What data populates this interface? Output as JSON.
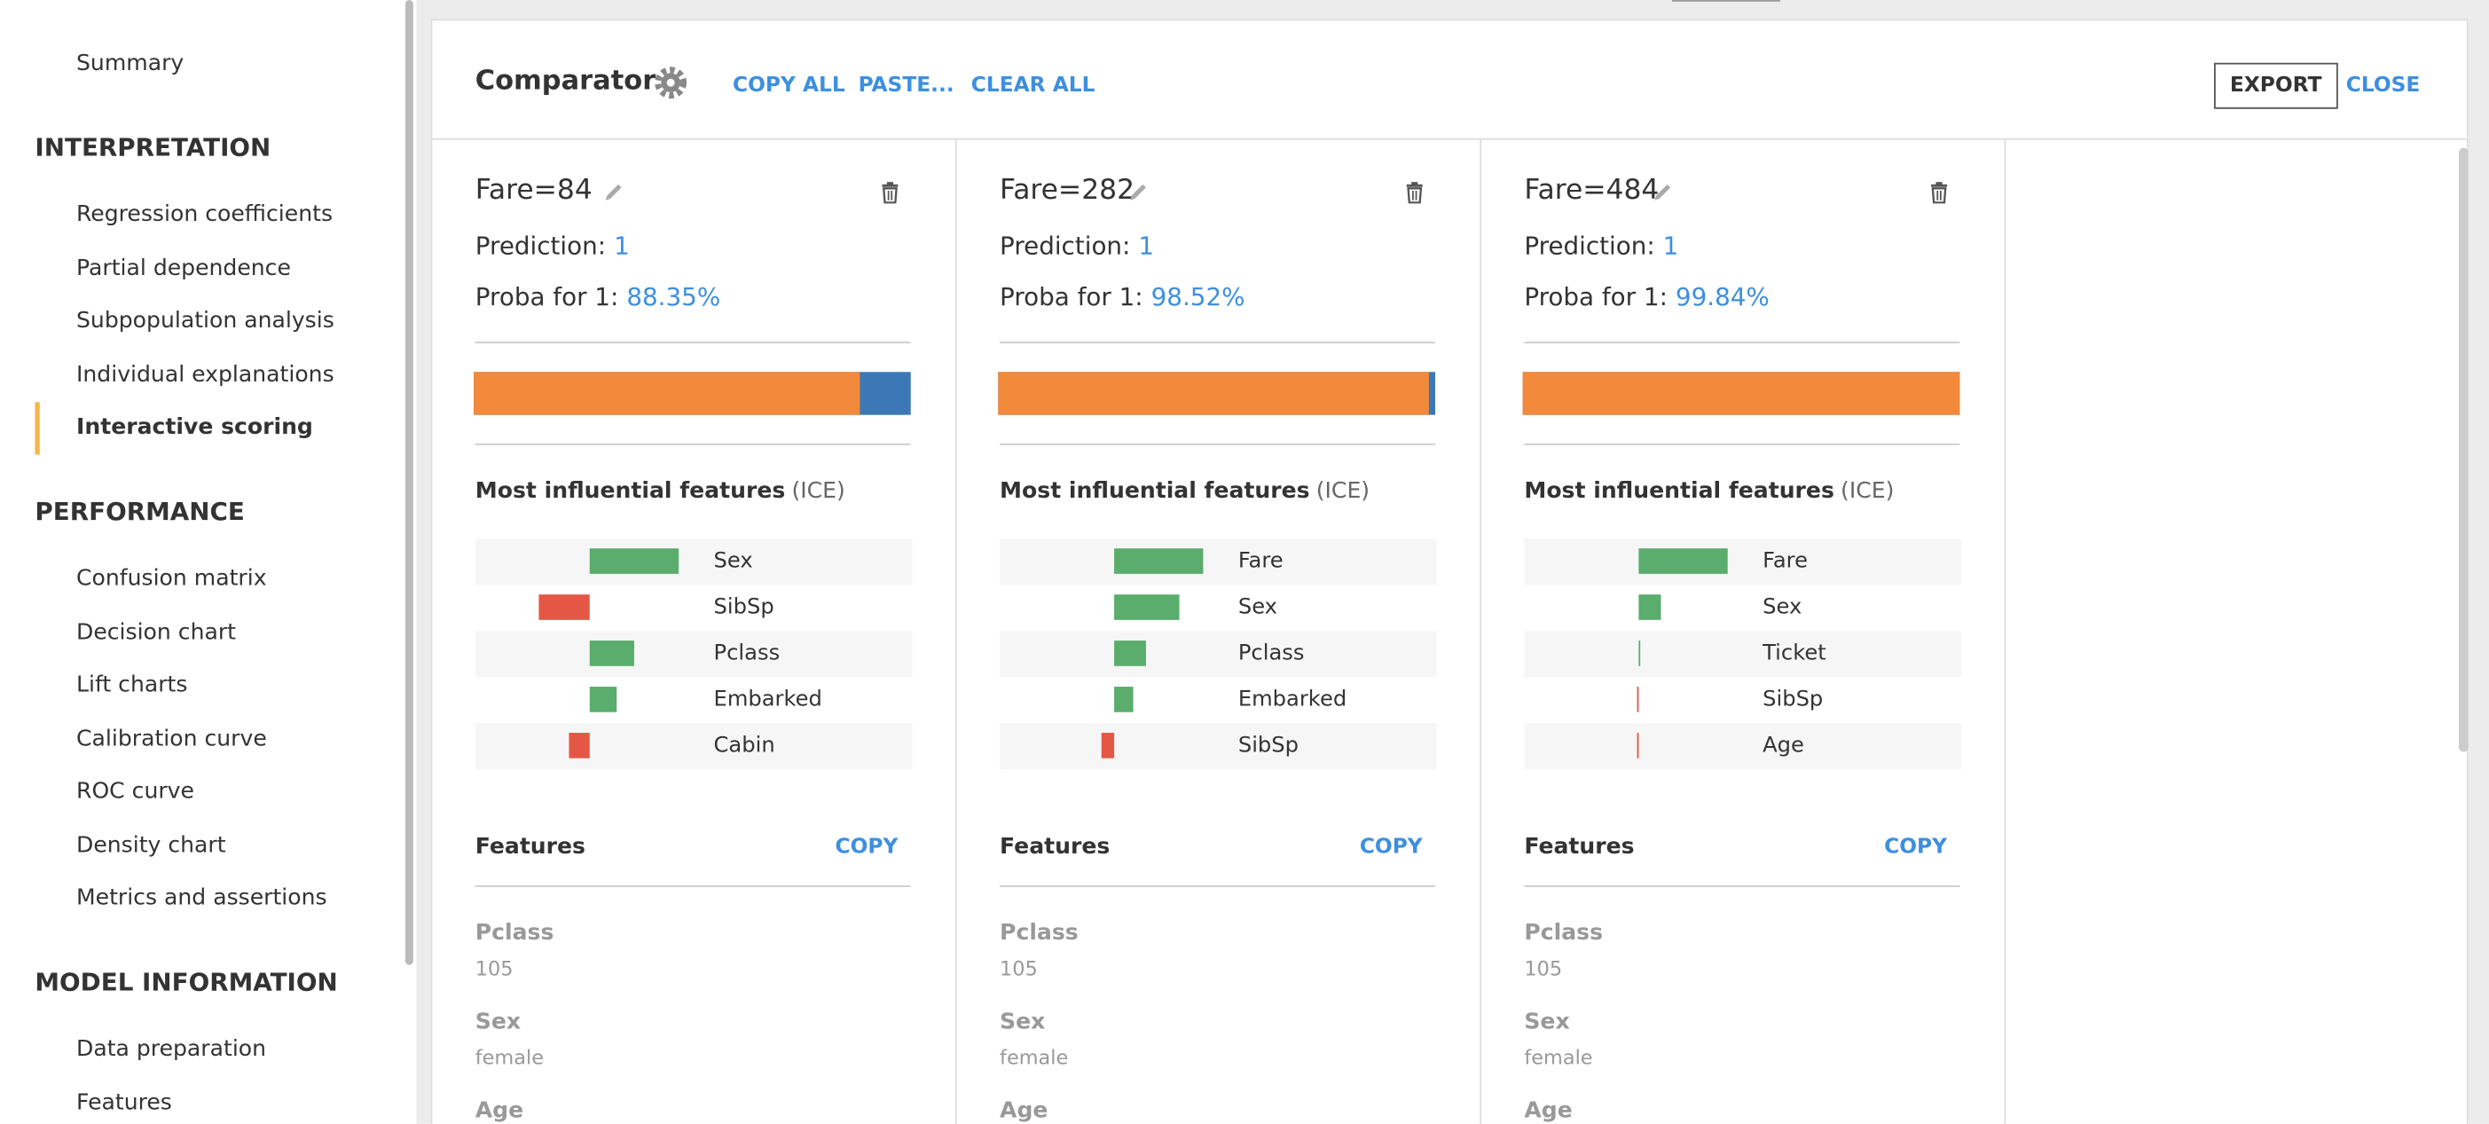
{
  "sidebar": {
    "top_item": "Summary",
    "sections": [
      {
        "title": "INTERPRETATION",
        "items": [
          {
            "label": "Regression coefficients"
          },
          {
            "label": "Partial dependence"
          },
          {
            "label": "Subpopulation analysis"
          },
          {
            "label": "Individual explanations"
          },
          {
            "label": "Interactive scoring",
            "active": true
          }
        ]
      },
      {
        "title": "PERFORMANCE",
        "items": [
          {
            "label": "Confusion matrix"
          },
          {
            "label": "Decision chart"
          },
          {
            "label": "Lift charts"
          },
          {
            "label": "Calibration curve"
          },
          {
            "label": "ROC curve"
          },
          {
            "label": "Density chart"
          },
          {
            "label": "Metrics and assertions"
          }
        ]
      },
      {
        "title": "MODEL INFORMATION",
        "items": [
          {
            "label": "Data preparation"
          },
          {
            "label": "Features"
          }
        ]
      }
    ]
  },
  "comparator": {
    "title": "Comparator",
    "actions": [
      "COPY ALL",
      "PASTE...",
      "CLEAR ALL"
    ],
    "export": "EXPORT",
    "close": "CLOSE"
  },
  "cards": [
    {
      "title": "Fare=84",
      "prediction_label": "Prediction:",
      "prediction": 1,
      "proba_label": "Proba for 1:",
      "proba": {
        "value": 88.35,
        "label": "88.35%"
      },
      "influence_title": "Most influential features",
      "influence_note": "(ICE)",
      "influences": [
        {
          "name": "Sex",
          "value": 0.56
        },
        {
          "name": "SibSp",
          "value": -0.32
        },
        {
          "name": "Pclass",
          "value": 0.28
        },
        {
          "name": "Embarked",
          "value": 0.17
        },
        {
          "name": "Cabin",
          "value": -0.13
        }
      ],
      "features_title": "Features",
      "copy": "COPY",
      "features": [
        {
          "name": "Pclass",
          "value": "105"
        },
        {
          "name": "Sex",
          "value": "female"
        },
        {
          "name": "Age"
        }
      ]
    },
    {
      "title": "Fare=282",
      "prediction_label": "Prediction:",
      "prediction": 1,
      "proba_label": "Proba for 1:",
      "proba": {
        "value": 98.52,
        "label": "98.52%"
      },
      "influence_title": "Most influential features",
      "influence_note": "(ICE)",
      "influences": [
        {
          "name": "Fare",
          "value": 0.56
        },
        {
          "name": "Sex",
          "value": 0.41
        },
        {
          "name": "Pclass",
          "value": 0.2
        },
        {
          "name": "Embarked",
          "value": 0.12
        },
        {
          "name": "SibSp",
          "value": -0.08
        }
      ],
      "features_title": "Features",
      "copy": "COPY",
      "features": [
        {
          "name": "Pclass",
          "value": "105"
        },
        {
          "name": "Sex",
          "value": "female"
        },
        {
          "name": "Age"
        }
      ]
    },
    {
      "title": "Fare=484",
      "prediction_label": "Prediction:",
      "prediction": 1,
      "proba_label": "Proba for 1:",
      "proba": {
        "value": 99.84,
        "label": "99.84%"
      },
      "influence_title": "Most influential features",
      "influence_note": "(ICE)",
      "influences": [
        {
          "name": "Fare",
          "value": 0.56
        },
        {
          "name": "Sex",
          "value": 0.14
        },
        {
          "name": "Ticket",
          "value": 0.01
        },
        {
          "name": "SibSp",
          "value": -0.01
        },
        {
          "name": "Age",
          "value": -0.01
        }
      ],
      "features_title": "Features",
      "copy": "COPY",
      "features": [
        {
          "name": "Pclass",
          "value": "105"
        },
        {
          "name": "Sex",
          "value": "female"
        },
        {
          "name": "Age"
        }
      ]
    }
  ]
}
